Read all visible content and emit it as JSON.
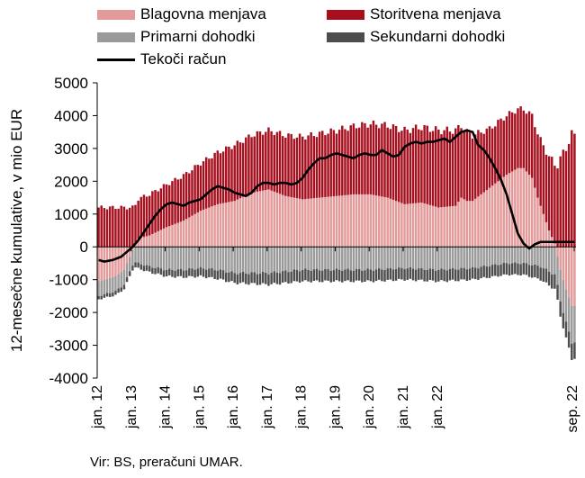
{
  "chart_data": {
    "type": "bar",
    "subtype": "stacked bar with line",
    "ylabel": "12-mesečne kumulative, v mio EUR",
    "ylim": [
      -4000,
      5000
    ],
    "yticks": [
      "5000",
      "4000",
      "3000",
      "2000",
      "1000",
      "0",
      "-1000",
      "-2000",
      "-3000",
      "-4000"
    ],
    "xticks": [
      "jan. 12",
      "jan. 13",
      "jan. 14",
      "jan. 15",
      "jan. 16",
      "jan. 17",
      "jan. 18",
      "jan. 19",
      "jan. 20",
      "jan. 21",
      "jan. 22",
      "sep. 22"
    ],
    "grid": false,
    "legend_position": "top",
    "x_start": "2012-01",
    "x_end": "2022-09",
    "colors": {
      "goods": "#e39a9a",
      "services": "#a50f1e",
      "primary": "#9a9a9a",
      "secondary": "#4d4d4d",
      "current_account": "#000000"
    },
    "legend": [
      {
        "key": "goods",
        "label": "Blagovna menjava",
        "kind": "bar"
      },
      {
        "key": "services",
        "label": "Storitvena menjava",
        "kind": "bar"
      },
      {
        "key": "primary",
        "label": "Primarni dohodki",
        "kind": "bar"
      },
      {
        "key": "secondary",
        "label": "Sekundarni dohodki",
        "kind": "bar"
      },
      {
        "key": "current_account",
        "label": "Tekoči račun",
        "kind": "line"
      }
    ],
    "series": [
      {
        "key": "goods",
        "name": "Blagovna menjava",
        "anchors": [
          [
            0,
            -1050
          ],
          [
            6,
            -900
          ],
          [
            9,
            -700
          ],
          [
            12,
            -100
          ],
          [
            14,
            250
          ],
          [
            18,
            350
          ],
          [
            24,
            600
          ],
          [
            30,
            800
          ],
          [
            36,
            1100
          ],
          [
            42,
            1300
          ],
          [
            48,
            1400
          ],
          [
            54,
            1650
          ],
          [
            60,
            1750
          ],
          [
            66,
            1550
          ],
          [
            72,
            1450
          ],
          [
            78,
            1500
          ],
          [
            84,
            1550
          ],
          [
            90,
            1600
          ],
          [
            96,
            1600
          ],
          [
            102,
            1500
          ],
          [
            108,
            1300
          ],
          [
            114,
            1350
          ],
          [
            120,
            1200
          ],
          [
            126,
            1250
          ],
          [
            132,
            1400
          ],
          [
            138,
            1800
          ],
          [
            144,
            2200
          ],
          [
            148,
            2400
          ],
          [
            150,
            2400
          ],
          [
            153,
            2100
          ],
          [
            155,
            1500
          ],
          [
            157,
            1000
          ],
          [
            159,
            500
          ],
          [
            161,
            100
          ],
          [
            163,
            -700
          ],
          [
            165,
            -1300
          ],
          [
            167,
            -1800
          ],
          [
            128,
            1500
          ],
          [
            130,
            1400
          ]
        ]
      },
      {
        "key": "services",
        "name": "Storitvena menjava",
        "anchors": [
          [
            0,
            1200
          ],
          [
            12,
            1200
          ],
          [
            24,
            1300
          ],
          [
            36,
            1450
          ],
          [
            48,
            1700
          ],
          [
            60,
            1800
          ],
          [
            72,
            1900
          ],
          [
            84,
            2000
          ],
          [
            96,
            2150
          ],
          [
            108,
            2250
          ],
          [
            120,
            2350
          ],
          [
            126,
            2300
          ],
          [
            132,
            2000
          ],
          [
            138,
            1800
          ],
          [
            144,
            1800
          ],
          [
            150,
            1800
          ],
          [
            156,
            2000
          ],
          [
            162,
            2500
          ],
          [
            167,
            3400
          ]
        ]
      },
      {
        "key": "primary",
        "name": "Primarni dohodki",
        "anchors": [
          [
            0,
            -450
          ],
          [
            6,
            -450
          ],
          [
            12,
            -450
          ],
          [
            18,
            -600
          ],
          [
            24,
            -700
          ],
          [
            30,
            -700
          ],
          [
            36,
            -650
          ],
          [
            42,
            -700
          ],
          [
            48,
            -800
          ],
          [
            54,
            -800
          ],
          [
            60,
            -800
          ],
          [
            72,
            -700
          ],
          [
            84,
            -700
          ],
          [
            96,
            -700
          ],
          [
            108,
            -650
          ],
          [
            120,
            -700
          ],
          [
            132,
            -650
          ],
          [
            144,
            -500
          ],
          [
            150,
            -500
          ],
          [
            156,
            -600
          ],
          [
            162,
            -900
          ],
          [
            167,
            -1100
          ]
        ]
      },
      {
        "key": "secondary",
        "name": "Sekundarni dohodki",
        "anchors": [
          [
            0,
            -100
          ],
          [
            12,
            -150
          ],
          [
            24,
            -200
          ],
          [
            36,
            -250
          ],
          [
            48,
            -300
          ],
          [
            60,
            -350
          ],
          [
            72,
            -350
          ],
          [
            84,
            -350
          ],
          [
            96,
            -350
          ],
          [
            108,
            -350
          ],
          [
            120,
            -350
          ],
          [
            132,
            -350
          ],
          [
            144,
            -350
          ],
          [
            150,
            -350
          ],
          [
            156,
            -400
          ],
          [
            162,
            -450
          ],
          [
            167,
            -500
          ]
        ]
      },
      {
        "key": "current_account",
        "name": "Tekoči račun",
        "anchors": [
          [
            0,
            -400
          ],
          [
            2,
            -450
          ],
          [
            5,
            -400
          ],
          [
            8,
            -300
          ],
          [
            10,
            -150
          ],
          [
            12,
            0
          ],
          [
            14,
            200
          ],
          [
            16,
            450
          ],
          [
            18,
            700
          ],
          [
            20,
            950
          ],
          [
            22,
            1150
          ],
          [
            24,
            1300
          ],
          [
            26,
            1350
          ],
          [
            28,
            1300
          ],
          [
            30,
            1250
          ],
          [
            32,
            1350
          ],
          [
            34,
            1400
          ],
          [
            36,
            1450
          ],
          [
            38,
            1600
          ],
          [
            40,
            1750
          ],
          [
            42,
            1850
          ],
          [
            44,
            1800
          ],
          [
            46,
            1750
          ],
          [
            48,
            1650
          ],
          [
            50,
            1600
          ],
          [
            52,
            1550
          ],
          [
            54,
            1650
          ],
          [
            56,
            1850
          ],
          [
            58,
            1950
          ],
          [
            60,
            1950
          ],
          [
            62,
            1900
          ],
          [
            64,
            1950
          ],
          [
            66,
            1950
          ],
          [
            68,
            1900
          ],
          [
            70,
            1950
          ],
          [
            72,
            2100
          ],
          [
            74,
            2350
          ],
          [
            76,
            2550
          ],
          [
            78,
            2700
          ],
          [
            80,
            2700
          ],
          [
            82,
            2800
          ],
          [
            84,
            2850
          ],
          [
            86,
            2800
          ],
          [
            88,
            2750
          ],
          [
            90,
            2700
          ],
          [
            92,
            2800
          ],
          [
            94,
            2850
          ],
          [
            96,
            2800
          ],
          [
            98,
            2800
          ],
          [
            100,
            2950
          ],
          [
            102,
            2850
          ],
          [
            104,
            2750
          ],
          [
            106,
            2800
          ],
          [
            108,
            3050
          ],
          [
            110,
            3150
          ],
          [
            112,
            3200
          ],
          [
            114,
            3150
          ],
          [
            116,
            3200
          ],
          [
            118,
            3200
          ],
          [
            120,
            3250
          ],
          [
            122,
            3300
          ],
          [
            124,
            3200
          ],
          [
            126,
            3350
          ],
          [
            128,
            3500
          ],
          [
            130,
            3550
          ],
          [
            132,
            3500
          ],
          [
            134,
            3100
          ],
          [
            136,
            2950
          ],
          [
            138,
            2700
          ],
          [
            140,
            2400
          ],
          [
            142,
            2050
          ],
          [
            144,
            1600
          ],
          [
            146,
            1000
          ],
          [
            148,
            400
          ],
          [
            150,
            100
          ],
          [
            152,
            -50
          ],
          [
            154,
            80
          ],
          [
            156,
            150
          ]
        ]
      }
    ]
  },
  "source_text": "Vir: BS, preračuni UMAR."
}
